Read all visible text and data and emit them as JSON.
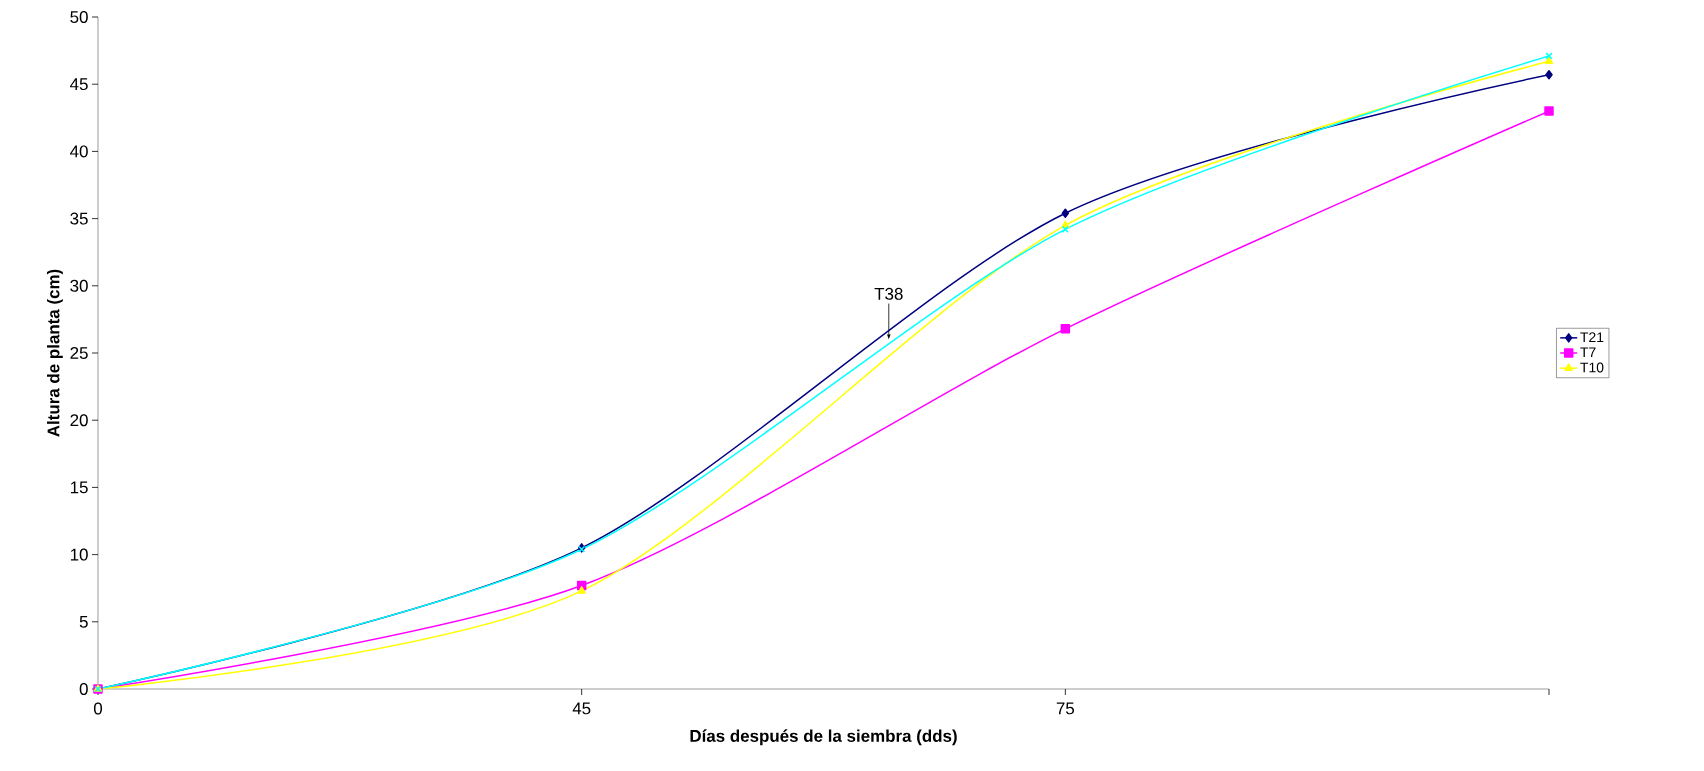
{
  "chart_data": {
    "type": "line",
    "xlabel": "Días después de la siembra (dds)",
    "ylabel": "Altura de planta (cm)",
    "categories": [
      "0",
      "45",
      "75",
      null
    ],
    "series": [
      {
        "name": "T21",
        "color": "#000080",
        "marker": "diamond",
        "values": [
          0,
          10.5,
          35.4,
          45.7
        ]
      },
      {
        "name": "T7",
        "color": "#ff00ff",
        "marker": "square",
        "values": [
          0,
          7.7,
          26.8,
          43.0
        ]
      },
      {
        "name": "T10",
        "color": "#ffff00",
        "marker": "triangle",
        "values": [
          0,
          7.3,
          34.5,
          46.7
        ]
      },
      {
        "color": "#00ffff",
        "marker": "cross",
        "values": [
          0,
          10.4,
          34.2,
          47.1
        ]
      }
    ],
    "ylim": [
      0,
      50
    ],
    "yticks": [
      0,
      5,
      10,
      15,
      20,
      25,
      30,
      35,
      40,
      45,
      50
    ],
    "annotations": [
      {
        "text": "T38",
        "y": 26
      }
    ],
    "legend": "right",
    "grid": false,
    "line_style": "solid"
  }
}
